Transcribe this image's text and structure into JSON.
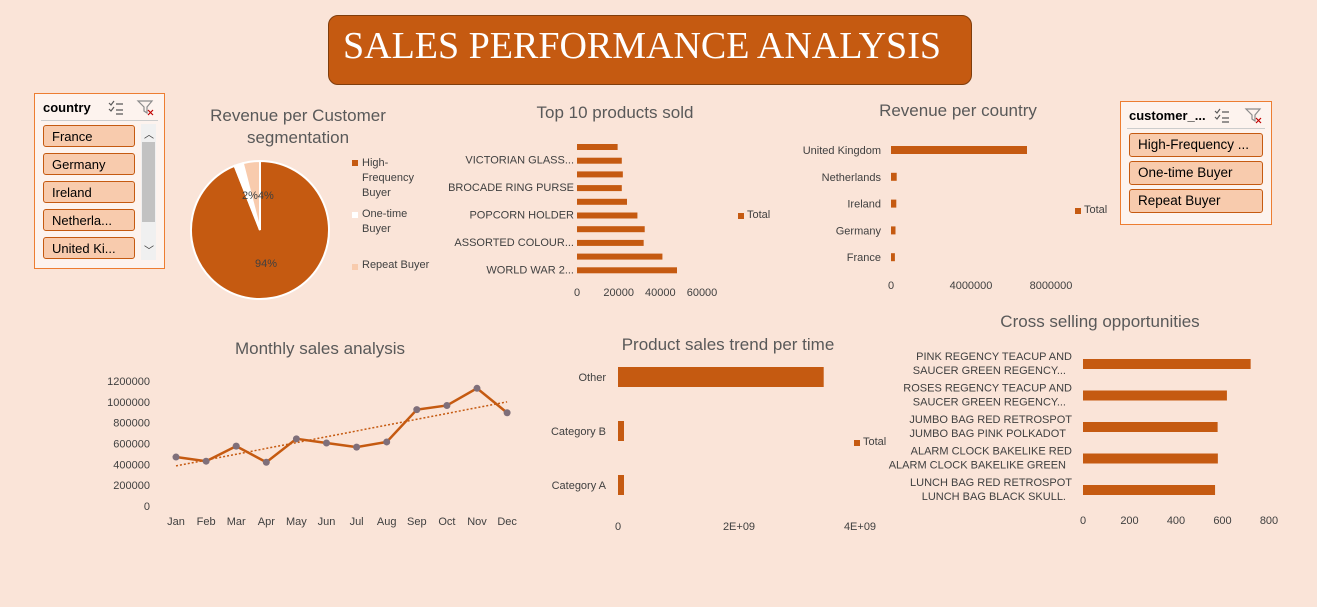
{
  "header": {
    "title": "SALES PERFORMANCE ANALYSIS"
  },
  "colors": {
    "accent": "#c55a11",
    "background": "#fae4d8",
    "light": "#f8cbad"
  },
  "country_slicer": {
    "title": "country",
    "icons": [
      "multi-select-icon",
      "clear-filter-icon"
    ],
    "items": [
      "France",
      "Germany",
      "Ireland",
      "Netherla...",
      "United Ki..."
    ]
  },
  "customer_slicer": {
    "title": "customer_...",
    "icons": [
      "multi-select-icon",
      "clear-filter-icon"
    ],
    "items": [
      "High-Frequency ...",
      "One-time Buyer",
      "Repeat Buyer"
    ]
  },
  "charts": {
    "pie": {
      "title_line1": "Revenue per Customer",
      "title_line2": "segmentation",
      "legend": [
        {
          "label_lines": [
            "High-",
            "Frequency",
            "Buyer"
          ],
          "color": "#c55a11"
        },
        {
          "label_lines": [
            "One-time",
            "Buyer"
          ],
          "color": "#ffffff"
        },
        {
          "label_lines": [
            "Repeat Buyer"
          ],
          "color": "#f8cbad"
        }
      ],
      "big_label": "94%",
      "small_label": "2%4%"
    },
    "top_products": {
      "title": "Top 10 products sold",
      "legend": "Total",
      "labels": [
        "VICTORIAN GLASS...",
        "BROCADE RING PURSE",
        "POPCORN HOLDER",
        "ASSORTED COLOUR...",
        "WORLD WAR 2..."
      ],
      "ticks": [
        "0",
        "20000",
        "40000",
        "60000"
      ]
    },
    "revenue_country": {
      "title": "Revenue per country",
      "legend": "Total",
      "labels": [
        "United Kingdom",
        "Netherlands",
        "Ireland",
        "Germany",
        "France"
      ],
      "ticks": [
        "0",
        "4000000",
        "8000000"
      ]
    },
    "monthly": {
      "title": "Monthly sales analysis",
      "months": [
        "Jan",
        "Feb",
        "Mar",
        "Apr",
        "May",
        "Jun",
        "Jul",
        "Aug",
        "Sep",
        "Oct",
        "Nov",
        "Dec"
      ],
      "y_ticks": [
        "1200000",
        "1000000",
        "800000",
        "600000",
        "400000",
        "200000",
        "0"
      ]
    },
    "trend": {
      "title": "Product sales trend per time",
      "legend": "Total",
      "labels": [
        "Other",
        "Category B",
        "Category A"
      ],
      "ticks": [
        "0",
        "2E+09",
        "4E+09"
      ]
    },
    "cross": {
      "title": "Cross selling opportunities",
      "labels": [
        [
          "PINK REGENCY TEACUP AND",
          "SAUCER GREEN REGENCY..."
        ],
        [
          "ROSES REGENCY TEACUP AND",
          "SAUCER  GREEN REGENCY..."
        ],
        [
          "JUMBO BAG RED RETROSPOT",
          "JUMBO BAG PINK POLKADOT"
        ],
        [
          "ALARM CLOCK BAKELIKE RED",
          "ALARM CLOCK BAKELIKE GREEN"
        ],
        [
          "LUNCH BAG RED RETROSPOT",
          "LUNCH BAG  BLACK SKULL."
        ]
      ],
      "ticks": [
        "0",
        "200",
        "400",
        "600",
        "800"
      ]
    }
  },
  "chart_data": [
    {
      "type": "pie",
      "title": "Revenue per Customer segmentation",
      "categories": [
        "High-Frequency Buyer",
        "One-time Buyer",
        "Repeat Buyer"
      ],
      "values": [
        94,
        2,
        4
      ]
    },
    {
      "type": "bar",
      "orientation": "horizontal",
      "title": "Top 10 products sold",
      "series": [
        {
          "name": "Total",
          "values": [
            48000,
            41000,
            32000,
            32500,
            29000,
            24000,
            21500,
            22000,
            21500,
            19500
          ]
        }
      ],
      "xlim": [
        0,
        60000
      ]
    },
    {
      "type": "bar",
      "orientation": "horizontal",
      "title": "Revenue per country",
      "categories": [
        "United Kingdom",
        "Netherlands",
        "Ireland",
        "Germany",
        "France"
      ],
      "series": [
        {
          "name": "Total",
          "values": [
            6800000,
            285000,
            265000,
            225000,
            195000
          ]
        }
      ],
      "xlim": [
        0,
        8000000
      ]
    },
    {
      "type": "line",
      "title": "Monthly sales analysis",
      "categories": [
        "Jan",
        "Feb",
        "Mar",
        "Apr",
        "May",
        "Jun",
        "Jul",
        "Aug",
        "Sep",
        "Oct",
        "Nov",
        "Dec"
      ],
      "series": [
        {
          "values": [
            470000,
            430000,
            575000,
            420000,
            645000,
            605000,
            565000,
            615000,
            925000,
            965000,
            1130000,
            895000
          ]
        }
      ],
      "trendline": [
        385000,
        1000000
      ],
      "ylim": [
        0,
        1200000
      ]
    },
    {
      "type": "bar",
      "orientation": "horizontal",
      "title": "Product sales trend per time",
      "categories": [
        "Other",
        "Category B",
        "Category A"
      ],
      "series": [
        {
          "name": "Total",
          "values": [
            3400000000,
            55000000,
            90000000
          ]
        }
      ],
      "xlim": [
        0,
        4000000000
      ]
    },
    {
      "type": "bar",
      "orientation": "horizontal",
      "title": "Cross selling opportunities",
      "categories": [
        "PINK REGENCY TEACUP AND SAUCER GREEN REGENCY...",
        "ROSES REGENCY TEACUP AND SAUCER GREEN REGENCY...",
        "JUMBO BAG RED RETROSPOT JUMBO BAG PINK POLKADOT",
        "ALARM CLOCK BAKELIKE RED ALARM CLOCK BAKELIKE GREEN",
        "LUNCH BAG RED RETROSPOT LUNCH BAG BLACK SKULL."
      ],
      "values": [
        721,
        619,
        579,
        580,
        568
      ],
      "xlim": [
        0,
        800
      ]
    }
  ]
}
